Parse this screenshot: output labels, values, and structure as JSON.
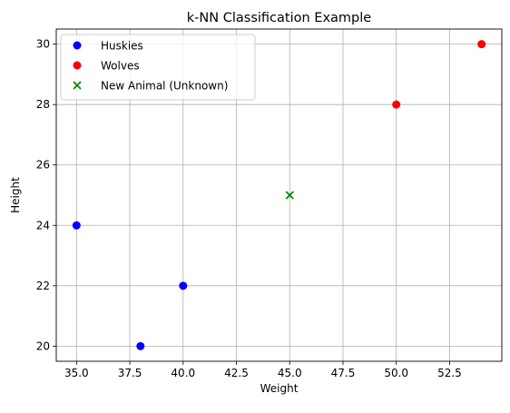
{
  "chart_data": {
    "type": "scatter",
    "title": "k-NN Classification Example",
    "xlabel": "Weight",
    "ylabel": "Height",
    "xlim": [
      34.05,
      54.95
    ],
    "ylim": [
      19.5,
      30.5
    ],
    "xticks": [
      35.0,
      37.5,
      40.0,
      42.5,
      45.0,
      47.5,
      50.0,
      52.5
    ],
    "xtick_labels": [
      "35.0",
      "37.5",
      "40.0",
      "42.5",
      "45.0",
      "47.5",
      "50.0",
      "52.5"
    ],
    "yticks": [
      20,
      22,
      24,
      26,
      28,
      30
    ],
    "ytick_labels": [
      "20",
      "22",
      "24",
      "26",
      "28",
      "30"
    ],
    "grid": true,
    "legend_position": "top-left",
    "series": [
      {
        "name": "Huskies",
        "color": "#0000ff",
        "marker": "circle",
        "points": [
          {
            "x": 35,
            "y": 24
          },
          {
            "x": 38,
            "y": 20
          },
          {
            "x": 40,
            "y": 22
          }
        ]
      },
      {
        "name": "Wolves",
        "color": "#ff0000",
        "marker": "circle",
        "points": [
          {
            "x": 50,
            "y": 28
          },
          {
            "x": 54,
            "y": 30
          }
        ]
      },
      {
        "name": "New Animal (Unknown)",
        "color": "#008000",
        "marker": "x",
        "points": [
          {
            "x": 45,
            "y": 25
          }
        ]
      }
    ]
  }
}
